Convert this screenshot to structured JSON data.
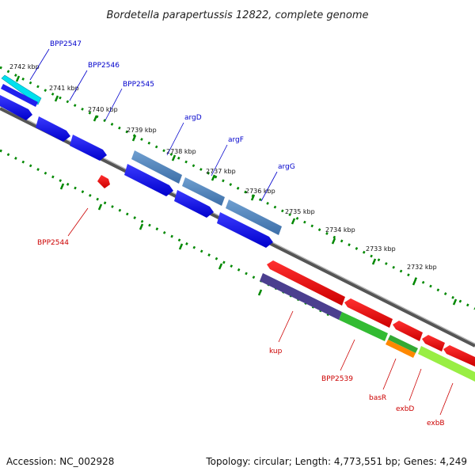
{
  "title": "Bordetella parapertussis 12822, complete genome",
  "footer": {
    "accession": "Accession: NC_002928",
    "topology": "Topology: circular; Length: 4,773,551 bp; Genes: 4,249"
  },
  "colors": {
    "forward_label": "#0000cc",
    "reverse_label": "#cc0000",
    "backbone": "#777777",
    "tick": "#008800"
  },
  "kbp_ticks": [
    "2742 kbp",
    "2741 kbp",
    "2740 kbp",
    "2739 kbp",
    "2738 kbp",
    "2737 kbp",
    "2736 kbp",
    "2735 kbp",
    "2734 kbp",
    "2733 kbp",
    "2732 kbp"
  ],
  "forward_genes": [
    "BPP2547",
    "BPP2546",
    "BPP2545",
    "argD",
    "argF",
    "argG"
  ],
  "reverse_genes": [
    "BPP2544",
    "kup",
    "BPP2539",
    "basR",
    "exbD",
    "exbB"
  ]
}
